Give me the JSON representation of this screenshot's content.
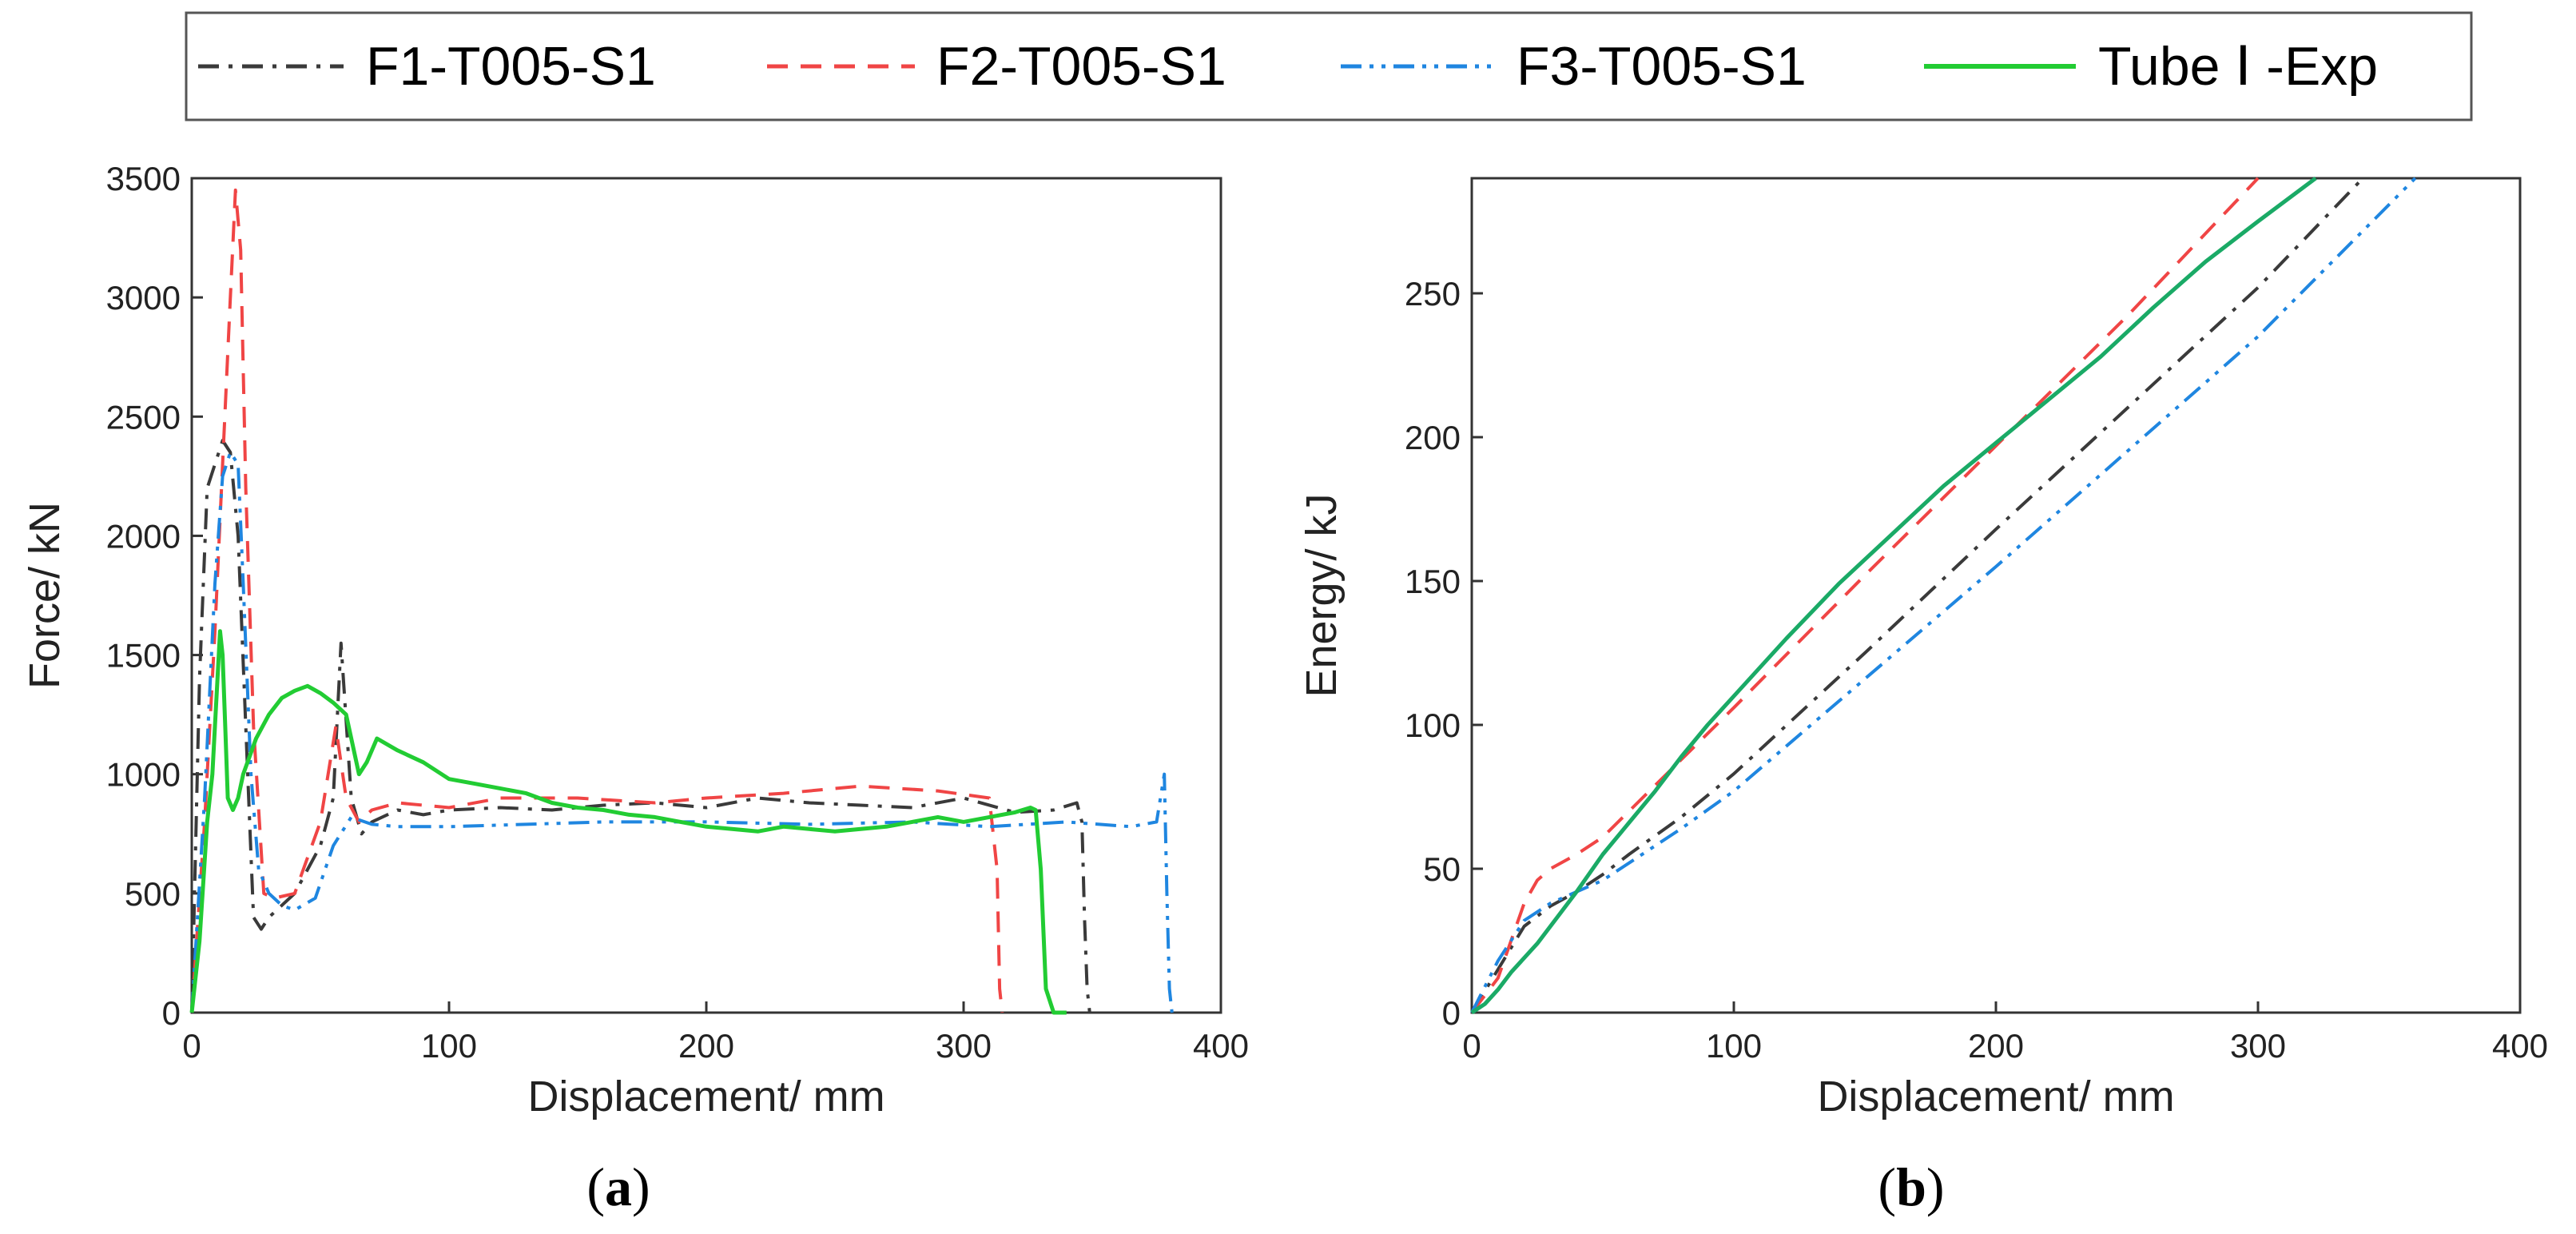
{
  "legend": {
    "entries": [
      {
        "label": "F1-T005-S1",
        "color": "#3a3a3a",
        "dash": "dashdot"
      },
      {
        "label": "F2-T005-S1",
        "color": "#f04545",
        "dash": "dash"
      },
      {
        "label": "F3-T005-S1",
        "color": "#1f86e0",
        "dash": "dashdotdot"
      },
      {
        "label": "Tube Ⅰ -Exp",
        "color": "#22cc33",
        "dash": "solid"
      }
    ]
  },
  "captions": {
    "a": {
      "open": "(",
      "letter": "a",
      "close": ")"
    },
    "b": {
      "open": "(",
      "letter": "b",
      "close": ")"
    }
  },
  "chart_data": [
    {
      "id": "a",
      "type": "line",
      "title": "",
      "xlabel": "Displacement/ mm",
      "ylabel": "Force/ kN",
      "xlim": [
        0,
        400
      ],
      "ylim": [
        0,
        3500
      ],
      "xticks": [
        0,
        100,
        200,
        300,
        400
      ],
      "yticks": [
        0,
        500,
        1000,
        1500,
        2000,
        2500,
        3000,
        3500
      ],
      "grid": false,
      "series": [
        {
          "name": "F1-T005-S1",
          "color": "#3a3a3a",
          "dash": "dashdot",
          "x": [
            0,
            3,
            6,
            9,
            12,
            15,
            18,
            21,
            24,
            27,
            30,
            35,
            40,
            45,
            50,
            55,
            58,
            62,
            66,
            70,
            80,
            90,
            100,
            120,
            140,
            160,
            180,
            200,
            220,
            240,
            260,
            280,
            300,
            320,
            335,
            344,
            346,
            347,
            348,
            349
          ],
          "y": [
            0,
            1400,
            2200,
            2300,
            2400,
            2350,
            2000,
            1200,
            400,
            350,
            400,
            450,
            500,
            600,
            700,
            900,
            1550,
            900,
            750,
            800,
            850,
            830,
            850,
            860,
            850,
            870,
            880,
            860,
            900,
            880,
            870,
            860,
            900,
            840,
            850,
            880,
            800,
            400,
            100,
            0
          ]
        },
        {
          "name": "F2-T005-S1",
          "color": "#f04545",
          "dash": "dash",
          "x": [
            0,
            5,
            9,
            12,
            15,
            17,
            19,
            21,
            24,
            28,
            32,
            40,
            50,
            56,
            60,
            65,
            70,
            80,
            100,
            120,
            150,
            180,
            200,
            230,
            260,
            290,
            310,
            313,
            314,
            315
          ],
          "y": [
            0,
            800,
            1600,
            2300,
            3000,
            3450,
            3200,
            2200,
            1200,
            500,
            480,
            500,
            800,
            1200,
            900,
            800,
            850,
            880,
            860,
            900,
            900,
            880,
            900,
            920,
            950,
            930,
            900,
            600,
            100,
            0
          ]
        },
        {
          "name": "F3-T005-S1",
          "color": "#1f86e0",
          "dash": "dashdotdot",
          "x": [
            0,
            5,
            9,
            12,
            15,
            18,
            20,
            23,
            26,
            30,
            35,
            40,
            48,
            55,
            62,
            70,
            80,
            100,
            130,
            160,
            200,
            240,
            280,
            310,
            340,
            365,
            375,
            378,
            379,
            380,
            381
          ],
          "y": [
            0,
            900,
            1800,
            2250,
            2350,
            2300,
            1800,
            1000,
            600,
            500,
            450,
            430,
            480,
            700,
            820,
            790,
            780,
            780,
            790,
            800,
            800,
            790,
            800,
            780,
            800,
            780,
            800,
            1000,
            500,
            100,
            0
          ]
        },
        {
          "name": "Tube Ⅰ -Exp",
          "color": "#22cc33",
          "dash": "solid",
          "x": [
            0,
            3,
            6,
            8,
            10,
            11,
            12,
            13,
            14,
            16,
            18,
            20,
            25,
            30,
            35,
            40,
            45,
            50,
            55,
            60,
            65,
            68,
            72,
            80,
            90,
            100,
            110,
            120,
            130,
            140,
            150,
            160,
            170,
            180,
            190,
            200,
            210,
            220,
            230,
            240,
            250,
            260,
            270,
            280,
            290,
            300,
            310,
            320,
            326,
            328,
            330,
            332,
            335,
            340
          ],
          "y": [
            0,
            300,
            800,
            1000,
            1400,
            1600,
            1500,
            1200,
            900,
            850,
            900,
            1000,
            1150,
            1250,
            1320,
            1350,
            1370,
            1340,
            1300,
            1250,
            1000,
            1050,
            1150,
            1100,
            1050,
            980,
            960,
            940,
            920,
            880,
            860,
            850,
            830,
            820,
            800,
            780,
            770,
            760,
            780,
            770,
            760,
            770,
            780,
            800,
            820,
            800,
            820,
            840,
            860,
            850,
            600,
            100,
            0,
            0
          ]
        }
      ]
    },
    {
      "id": "b",
      "type": "line",
      "title": "",
      "xlabel": "Displacement/ mm",
      "ylabel": "Energy/ kJ",
      "xlim": [
        0,
        400
      ],
      "ylim": [
        0,
        290
      ],
      "xticks": [
        0,
        100,
        200,
        300,
        400
      ],
      "yticks": [
        0,
        50,
        100,
        150,
        200,
        250
      ],
      "grid": false,
      "series": [
        {
          "name": "F1-T005-S1",
          "color": "#3a3a3a",
          "dash": "dashdot",
          "x": [
            0,
            10,
            20,
            30,
            40,
            50,
            60,
            80,
            100,
            150,
            200,
            250,
            300,
            340
          ],
          "y": [
            0,
            15,
            30,
            37,
            42,
            48,
            55,
            68,
            83,
            125,
            168,
            210,
            252,
            290
          ]
        },
        {
          "name": "F2-T005-S1",
          "color": "#f04545",
          "dash": "dash",
          "x": [
            0,
            10,
            20,
            25,
            30,
            40,
            50,
            60,
            80,
            100,
            150,
            200,
            250,
            300
          ],
          "y": [
            0,
            12,
            38,
            46,
            50,
            55,
            61,
            70,
            88,
            106,
            152,
            197,
            242,
            290
          ]
        },
        {
          "name": "F3-T005-S1",
          "color": "#1f86e0",
          "dash": "dashdotdot",
          "x": [
            0,
            10,
            20,
            30,
            40,
            50,
            60,
            80,
            100,
            150,
            200,
            250,
            300,
            360
          ],
          "y": [
            0,
            18,
            32,
            38,
            42,
            46,
            52,
            64,
            77,
            116,
            155,
            195,
            235,
            290
          ]
        },
        {
          "name": "Tube Ⅰ -Exp",
          "color": "#1aaa66",
          "dash": "solid",
          "x": [
            0,
            5,
            10,
            15,
            20,
            25,
            30,
            40,
            50,
            60,
            70,
            80,
            90,
            100,
            120,
            140,
            160,
            180,
            200,
            220,
            240,
            260,
            280,
            300,
            322
          ],
          "y": [
            0,
            3,
            8,
            14,
            19,
            24,
            30,
            42,
            55,
            66,
            77,
            89,
            100,
            110,
            130,
            149,
            166,
            183,
            198,
            213,
            228,
            245,
            261,
            275,
            290
          ]
        }
      ]
    }
  ]
}
